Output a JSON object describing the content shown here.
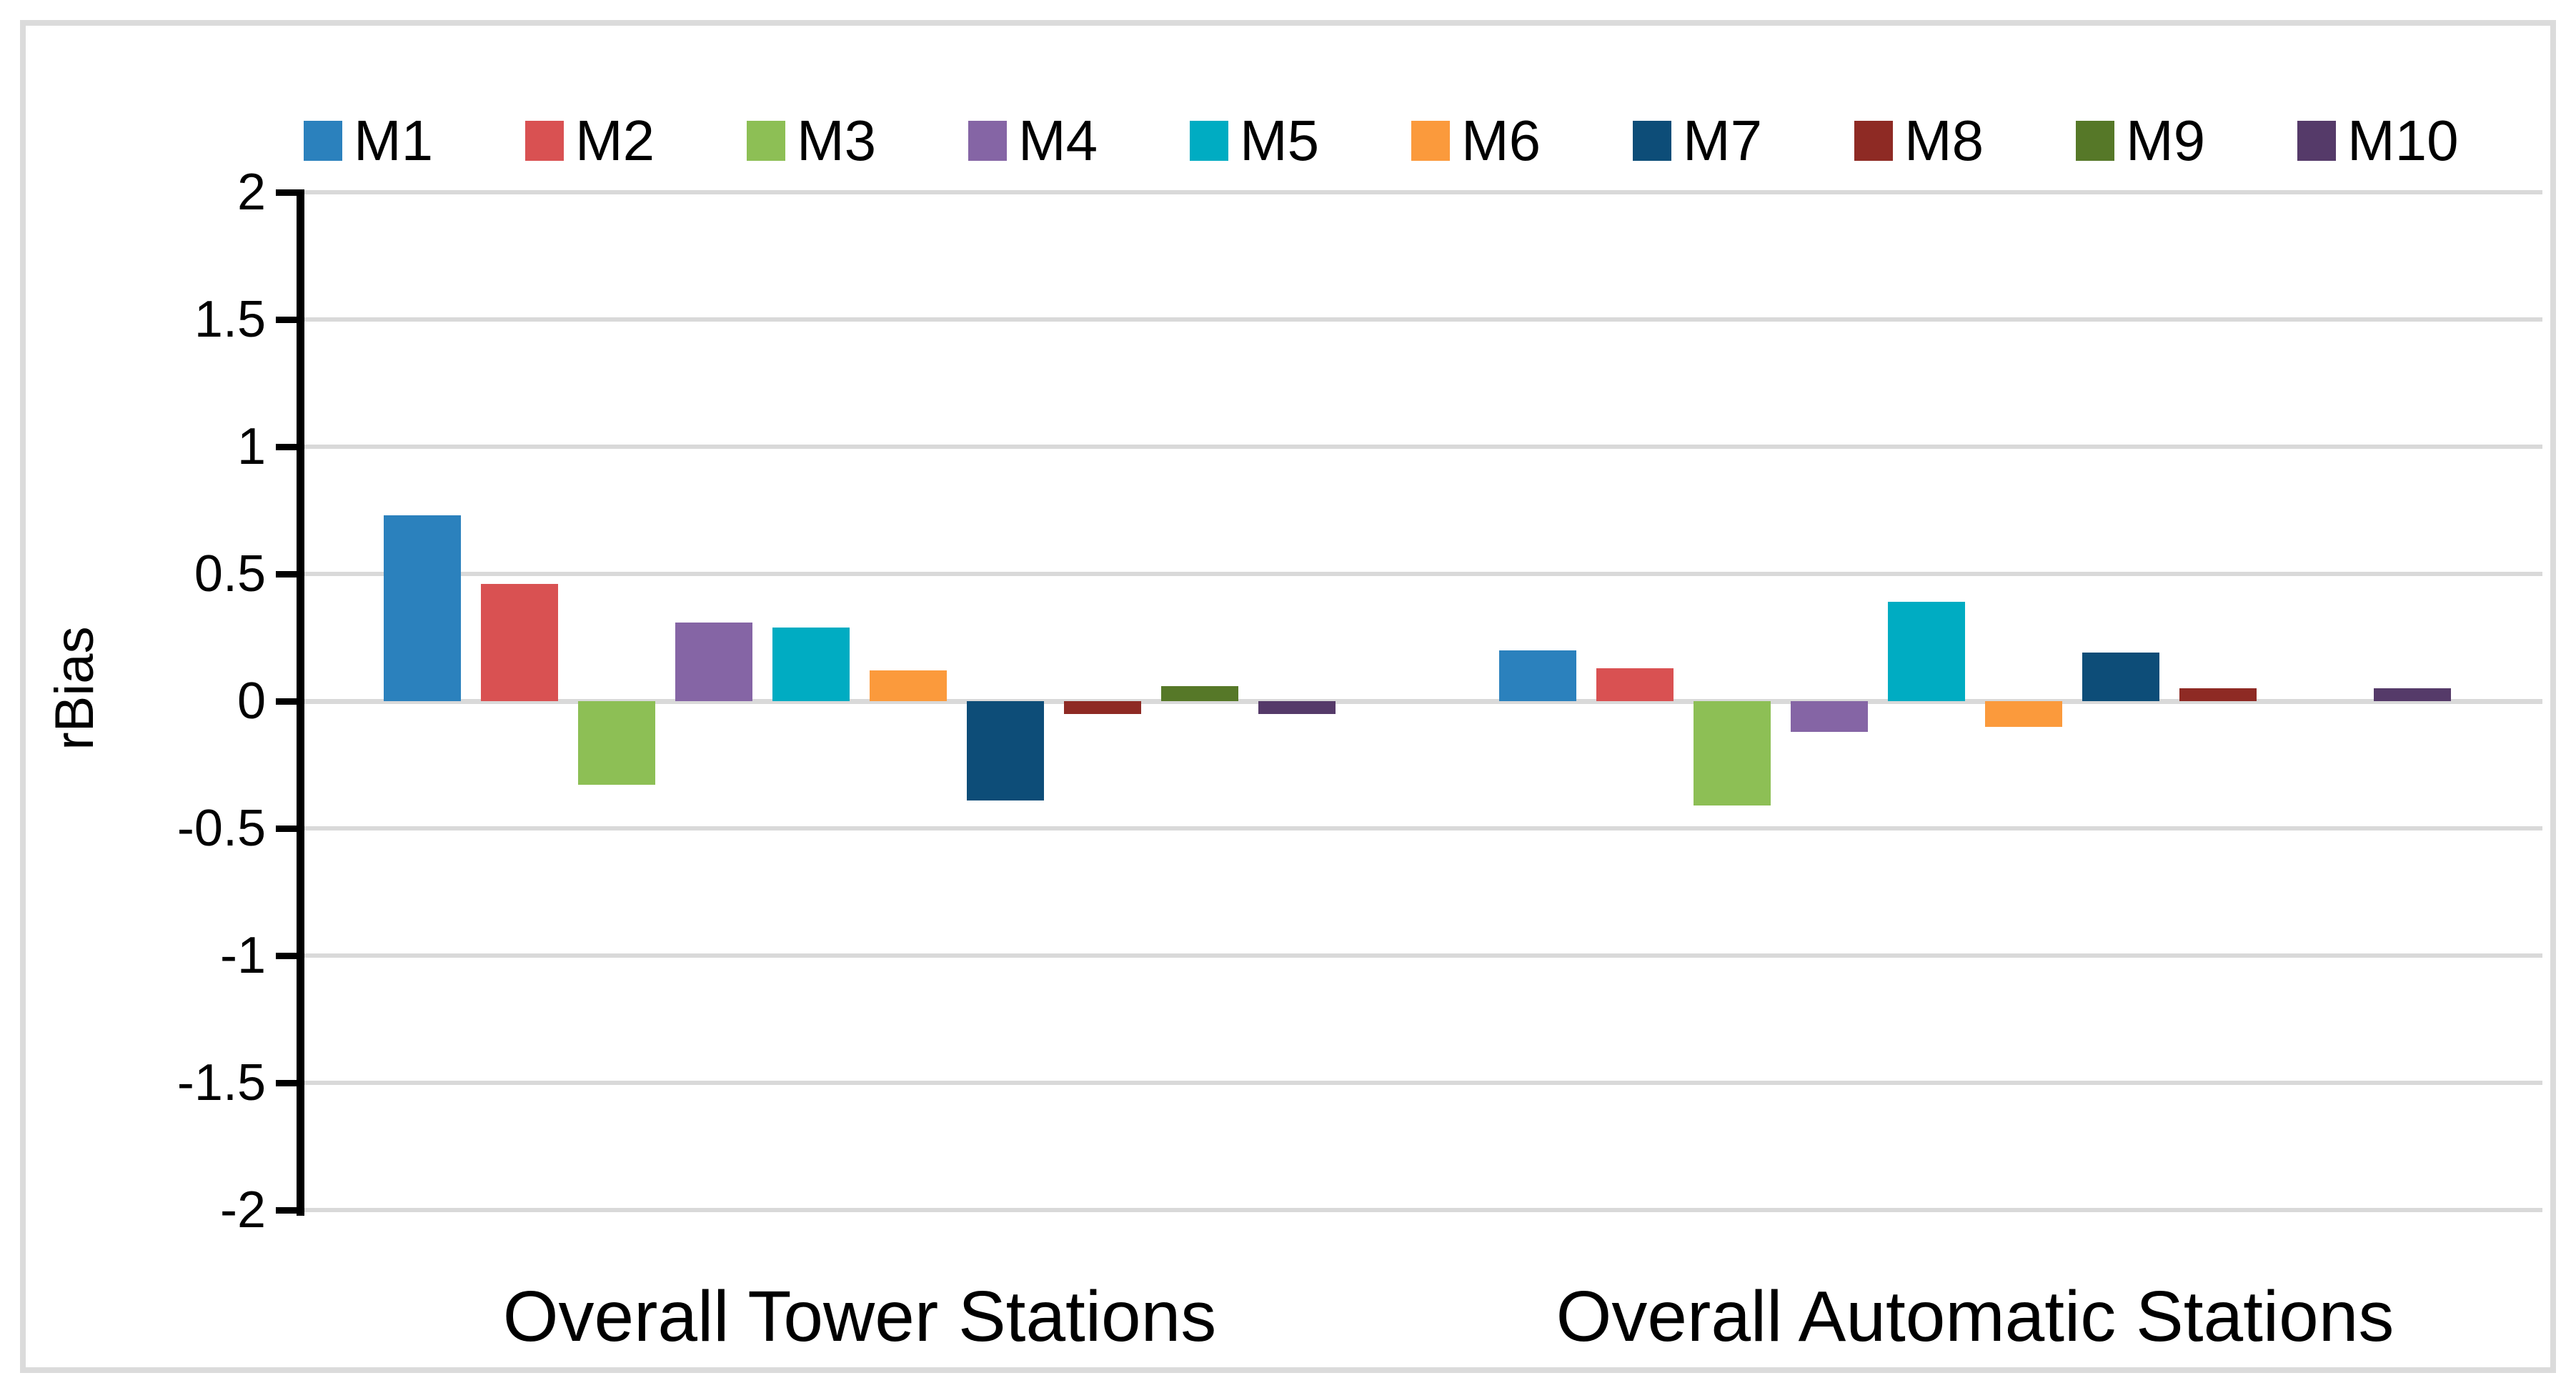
{
  "chart_data": {
    "type": "bar",
    "title": "",
    "xlabel": "",
    "ylabel": "rBias",
    "ylim": [
      -2,
      2
    ],
    "ytick_labels": [
      "2",
      "1.5",
      "1",
      "0.5",
      "0",
      "-0.5",
      "-1",
      "-1.5",
      "-2"
    ],
    "grid": true,
    "gridline_color": "#D9D9D9",
    "axis_color": "#000000",
    "legend_position": "top",
    "categories": [
      "Overall Tower Stations",
      "Overall Automatic Stations"
    ],
    "series": [
      {
        "name": "M1",
        "color": "#2B81BD",
        "values": [
          0.73,
          0.2
        ]
      },
      {
        "name": "M2",
        "color": "#D95152",
        "values": [
          0.46,
          0.13
        ]
      },
      {
        "name": "M3",
        "color": "#8DBF55",
        "values": [
          -0.33,
          -0.41
        ]
      },
      {
        "name": "M4",
        "color": "#8565A5",
        "values": [
          0.31,
          -0.12
        ]
      },
      {
        "name": "M5",
        "color": "#00ACC2",
        "values": [
          0.29,
          0.39
        ]
      },
      {
        "name": "M6",
        "color": "#FB9A3C",
        "values": [
          0.12,
          -0.1
        ]
      },
      {
        "name": "M7",
        "color": "#0D4D78",
        "values": [
          -0.39,
          0.19
        ]
      },
      {
        "name": "M8",
        "color": "#8E2A24",
        "values": [
          -0.05,
          0.05
        ]
      },
      {
        "name": "M9",
        "color": "#567828",
        "values": [
          0.06,
          0.0
        ]
      },
      {
        "name": "M10",
        "color": "#553A69",
        "values": [
          -0.05,
          0.05
        ]
      }
    ]
  }
}
